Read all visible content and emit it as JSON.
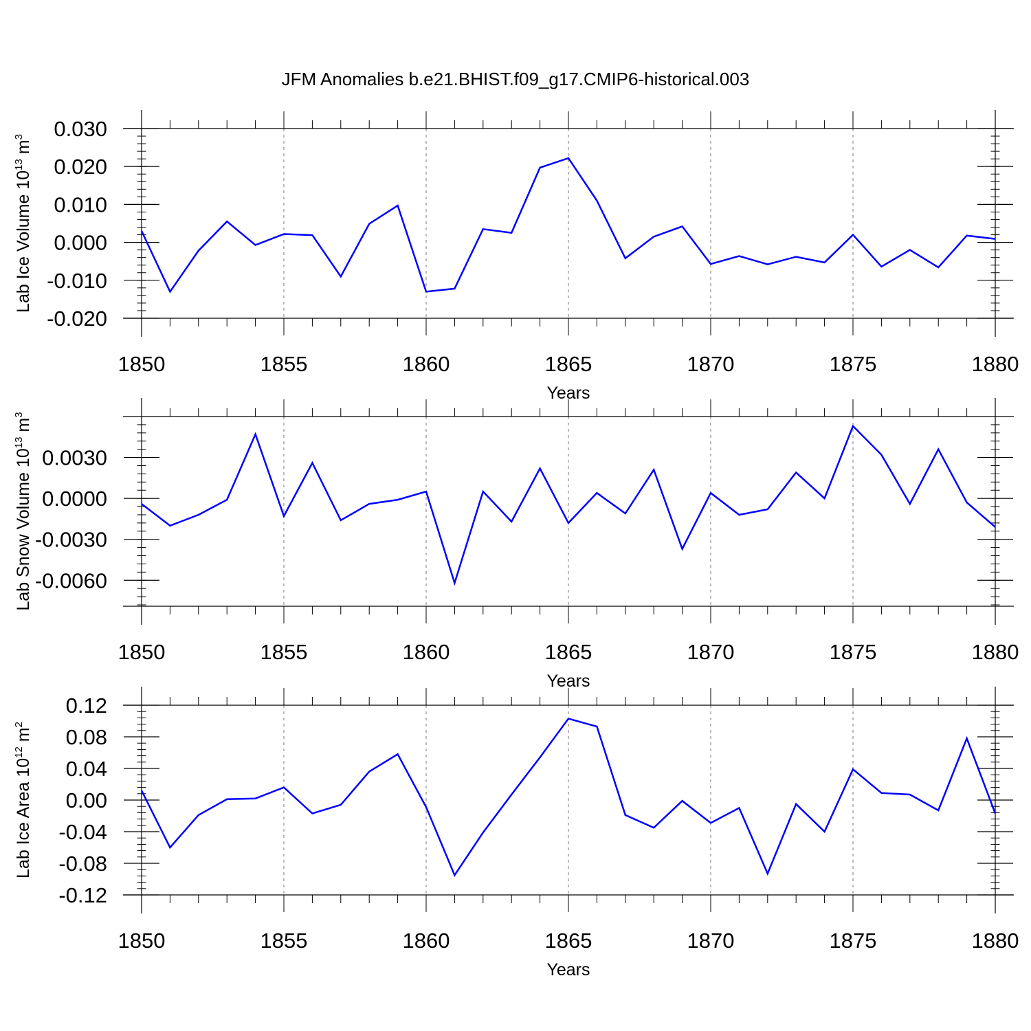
{
  "chart_data": {
    "title": "JFM Anomalies b.e21.BHIST.f09_g17.CMIP6-historical.003",
    "years": [
      1850,
      1851,
      1852,
      1853,
      1854,
      1855,
      1856,
      1857,
      1858,
      1859,
      1860,
      1861,
      1862,
      1863,
      1864,
      1865,
      1866,
      1867,
      1868,
      1869,
      1870,
      1871,
      1872,
      1873,
      1874,
      1875,
      1876,
      1877,
      1878,
      1879,
      1880
    ],
    "panels": [
      {
        "type": "line",
        "ylabel": "Lab Ice Volume 10",
        "ylabel_exp": "13",
        "ylabel_unit": "m",
        "ylabel_unit_exp": "3",
        "xlabel": "Years",
        "xlim": [
          1850,
          1880
        ],
        "ylim": [
          -0.02,
          0.03
        ],
        "yticks": [
          -0.02,
          -0.01,
          0.0,
          0.01,
          0.02,
          0.03
        ],
        "ytick_labels": [
          "-0.020",
          "-0.010",
          "0.000",
          "0.010",
          "0.020",
          "0.030"
        ],
        "ytick_minor_step": 0.002,
        "color": "#0000ff",
        "values": [
          0.003,
          -0.013,
          -0.0022,
          0.0055,
          -0.0007,
          0.0022,
          0.0019,
          -0.009,
          0.0049,
          0.0097,
          -0.013,
          -0.0122,
          0.0035,
          0.0025,
          0.0197,
          0.0222,
          0.011,
          -0.0042,
          0.0015,
          0.0042,
          -0.0057,
          -0.0036,
          -0.0058,
          -0.0038,
          -0.0053,
          0.002,
          -0.0064,
          -0.002,
          -0.0066,
          0.0018,
          0.0009
        ]
      },
      {
        "type": "line",
        "ylabel": "Lab Snow Volume 10",
        "ylabel_exp": "13",
        "ylabel_unit": "m",
        "ylabel_unit_exp": "3",
        "xlabel": "Years",
        "xlim": [
          1850,
          1880
        ],
        "ylim": [
          -0.0079,
          0.006
        ],
        "yticks": [
          -0.006,
          -0.003,
          0.0,
          0.003
        ],
        "ytick_labels": [
          "-0.0060",
          "-0.0030",
          "0.0000",
          "0.0030"
        ],
        "ytick_minor_step": 0.0006,
        "color": "#0000ff",
        "values": [
          -0.0004,
          -0.002,
          -0.0012,
          -0.0001,
          0.0047,
          -0.0013,
          0.0026,
          -0.0016,
          -0.0004,
          -0.0001,
          0.0005,
          -0.0062,
          0.0005,
          -0.0017,
          0.0022,
          -0.0018,
          0.0004,
          -0.0011,
          0.0021,
          -0.0037,
          0.0004,
          -0.0012,
          -0.0008,
          0.0019,
          0.0,
          0.0053,
          0.0032,
          -0.0004,
          0.0036,
          -0.0003,
          -0.0021
        ]
      },
      {
        "type": "line",
        "ylabel": "Lab Ice Area 10",
        "ylabel_exp": "12",
        "ylabel_unit": "m",
        "ylabel_unit_exp": "2",
        "xlabel": "Years",
        "xlim": [
          1850,
          1880
        ],
        "ylim": [
          -0.12,
          0.12
        ],
        "yticks": [
          -0.12,
          -0.08,
          -0.04,
          0.0,
          0.04,
          0.08,
          0.12
        ],
        "ytick_labels": [
          "-0.12",
          "-0.08",
          "-0.04",
          "0.00",
          "0.04",
          "0.08",
          "0.12"
        ],
        "ytick_minor_step": 0.008,
        "color": "#0000ff",
        "values": [
          0.012,
          -0.06,
          -0.019,
          0.001,
          0.002,
          0.016,
          -0.017,
          -0.006,
          0.036,
          0.058,
          -0.009,
          -0.095,
          -0.041,
          0.007,
          0.054,
          0.103,
          0.093,
          -0.019,
          -0.035,
          -0.001,
          -0.029,
          -0.01,
          -0.093,
          -0.005,
          -0.04,
          0.039,
          0.009,
          0.007,
          -0.013,
          0.078,
          -0.017
        ]
      }
    ],
    "xticks": [
      1850,
      1855,
      1860,
      1865,
      1870,
      1875,
      1880
    ],
    "xtick_labels": [
      "1850",
      "1855",
      "1860",
      "1865",
      "1870",
      "1875",
      "1880"
    ],
    "grid": "vertical dashed at major x ticks"
  }
}
